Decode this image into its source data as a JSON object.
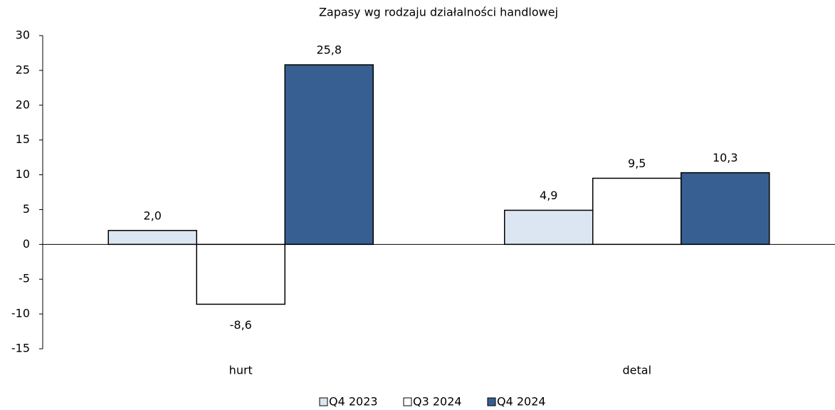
{
  "chart_data": {
    "type": "bar",
    "title": "Zapasy wg rodzaju działalności handlowej",
    "categories": [
      "hurt",
      "detal"
    ],
    "series": [
      {
        "name": "Q4 2023",
        "color": "#dce6f2",
        "values": [
          2.0,
          4.9
        ],
        "value_labels": [
          "2,0",
          "4,9"
        ]
      },
      {
        "name": "Q3 2024",
        "color": "#ffffff",
        "values": [
          -8.6,
          9.5
        ],
        "value_labels": [
          "-8,6",
          "9,5"
        ]
      },
      {
        "name": "Q4 2024",
        "color": "#375f91",
        "values": [
          25.8,
          10.3
        ],
        "value_labels": [
          "25,8",
          "10,3"
        ]
      }
    ],
    "ylim": [
      -15,
      30
    ],
    "yticks": [
      -15,
      -10,
      -5,
      0,
      5,
      10,
      15,
      20,
      25,
      30
    ],
    "legend": "bottom"
  }
}
